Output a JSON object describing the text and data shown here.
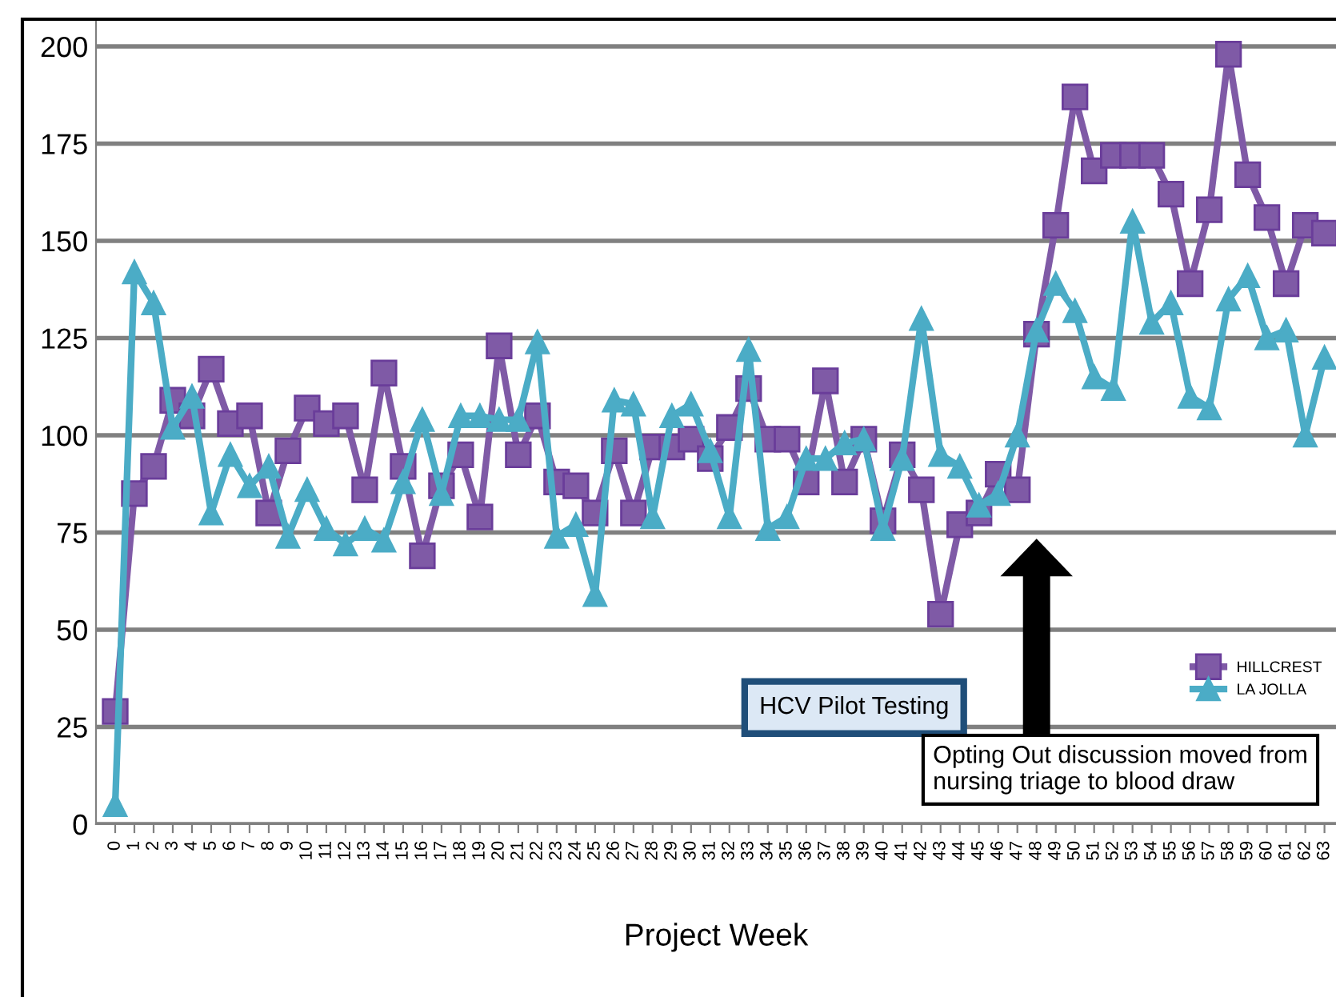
{
  "chart_data": {
    "type": "line",
    "xlabel": "Project Week",
    "categories": [
      "0",
      "1",
      "2",
      "3",
      "4",
      "5",
      "6",
      "7",
      "8",
      "9",
      "10",
      "11",
      "12",
      "13",
      "14",
      "15",
      "16",
      "17",
      "18",
      "19",
      "20",
      "21",
      "22",
      "23",
      "24",
      "25",
      "26",
      "27",
      "28",
      "29",
      "30",
      "31",
      "32",
      "33",
      "34",
      "35",
      "36",
      "37",
      "38",
      "39",
      "40",
      "41",
      "42",
      "43",
      "44",
      "45",
      "46",
      "47",
      "48",
      "49",
      "50",
      "51",
      "52",
      "53",
      "54",
      "55",
      "56",
      "57",
      "58",
      "59",
      "60",
      "61",
      "62",
      "63"
    ],
    "series": [
      {
        "name": "HILLCREST",
        "color": "#7f5aa6",
        "marker": "square",
        "values": [
          29,
          85,
          92,
          109,
          105,
          117,
          103,
          105,
          80,
          96,
          107,
          103,
          105,
          86,
          116,
          92,
          69,
          87,
          95,
          79,
          123,
          95,
          105,
          88,
          87,
          80,
          96,
          80,
          97,
          97,
          99,
          94,
          102,
          112,
          99,
          99,
          88,
          114,
          88,
          99,
          78,
          95,
          86,
          54,
          77,
          80,
          90,
          86,
          126,
          154,
          187,
          168,
          172,
          172,
          172,
          162,
          139,
          158,
          198,
          167,
          156,
          139,
          154,
          152
        ]
      },
      {
        "name": "LA JOLLA",
        "color": "#4bacc6",
        "marker": "triangle",
        "values": [
          5,
          142,
          134,
          102,
          110,
          80,
          95,
          87,
          92,
          74,
          86,
          76,
          72,
          76,
          73,
          88,
          104,
          85,
          105,
          105,
          104,
          104,
          124,
          74,
          77,
          59,
          109,
          108,
          79,
          105,
          108,
          96,
          79,
          122,
          76,
          79,
          94,
          94,
          98,
          99,
          76,
          94,
          130,
          95,
          92,
          82,
          85,
          100,
          127,
          139,
          132,
          115,
          112,
          155,
          129,
          134,
          110,
          107,
          135,
          141,
          125,
          127,
          100,
          120
        ]
      }
    ],
    "ylim": [
      0,
      207
    ],
    "yticks": [
      0,
      25,
      50,
      75,
      100,
      125,
      150,
      175,
      200
    ],
    "grid": "y",
    "legend": "right",
    "annotations": [
      "HCV Pilot Testing",
      "Opting Out discussion moved from nursing triage to blood draw"
    ]
  }
}
